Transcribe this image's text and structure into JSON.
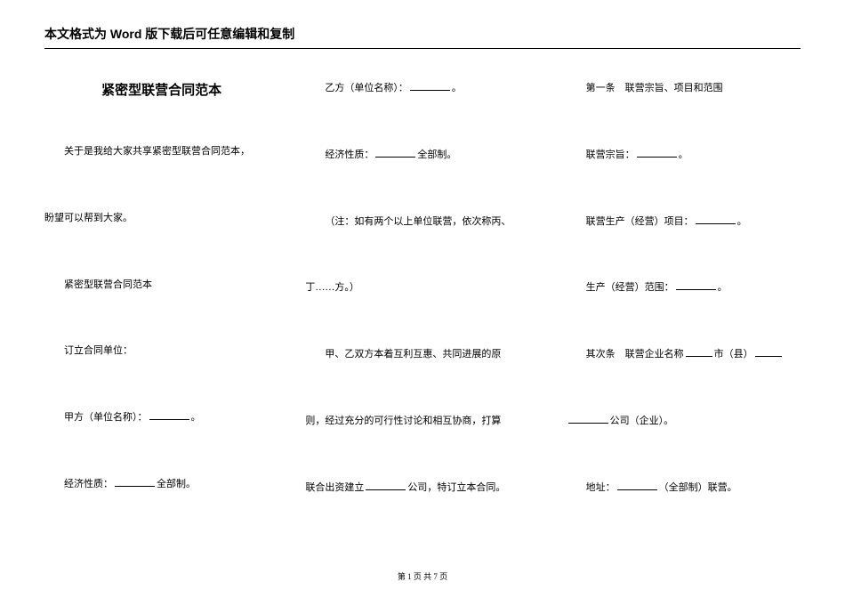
{
  "header": "本文格式为 Word 版下载后可任意编辑和复制",
  "title": "紧密型联营合同范本",
  "col1": {
    "p1": "关于是我给大家共享紧密型联营合同范本，",
    "p2": "盼望可以帮到大家。",
    "p3": "紧密型联营合同范本",
    "p4": "订立合同单位：",
    "p5_a": "甲方（单位名称）：",
    "p5_b": "。",
    "p6_a": "经济性质：",
    "p6_b": "全部制。"
  },
  "col2": {
    "p1_a": "乙方（单位名称）：",
    "p1_b": "。",
    "p2_a": "经济性质：",
    "p2_b": "全部制。",
    "p3": "（注：如有两个以上单位联营，依次称丙、",
    "p4": "丁……方。）",
    "p5": "甲、乙双方本着互利互惠、共同进展的原",
    "p6": "则，经过充分的可行性讨论和相互协商，打算",
    "p7_a": "联合出资建立",
    "p7_b": "公司，特订立本合同。"
  },
  "col3": {
    "p1": "第一条　联营宗旨、项目和范围",
    "p2_a": "联营宗旨：",
    "p2_b": "。",
    "p3_a": "联营生产（经营）项目：",
    "p3_b": "。",
    "p4_a": "生产（经营）范围：",
    "p4_b": "。",
    "p5_a": "其次条　联营企业名称",
    "p5_b": "市（县）",
    "p6_a": "",
    "p6_b": "公司（企业）。",
    "p7_a": "地址：",
    "p7_b": "（全部制）联营。"
  },
  "footer": "第 1 页 共 7 页"
}
